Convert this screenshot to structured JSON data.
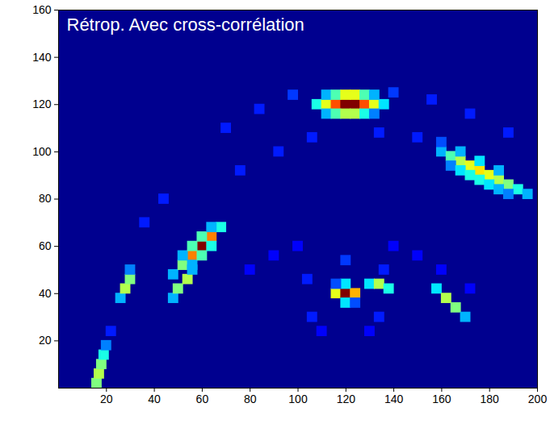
{
  "chart_data": {
    "type": "heatmap",
    "title": "Rétrop. Avec cross-corrélation",
    "xlim": [
      0,
      200
    ],
    "ylim": [
      0,
      160
    ],
    "xticks": [
      20,
      40,
      60,
      80,
      100,
      120,
      140,
      160,
      180,
      200
    ],
    "yticks": [
      20,
      40,
      60,
      80,
      100,
      120,
      140,
      160
    ],
    "clim": [
      0,
      1
    ],
    "cells": [
      [
        108,
        120,
        0.4
      ],
      [
        112,
        120,
        0.6
      ],
      [
        116,
        120,
        0.8
      ],
      [
        120,
        120,
        1.0
      ],
      [
        124,
        120,
        1.0
      ],
      [
        128,
        120,
        0.8
      ],
      [
        132,
        120,
        0.6
      ],
      [
        136,
        120,
        0.35
      ],
      [
        112,
        124,
        0.3
      ],
      [
        116,
        124,
        0.45
      ],
      [
        120,
        124,
        0.6
      ],
      [
        124,
        124,
        0.6
      ],
      [
        128,
        124,
        0.45
      ],
      [
        132,
        124,
        0.3
      ],
      [
        112,
        116,
        0.3
      ],
      [
        116,
        116,
        0.45
      ],
      [
        120,
        116,
        0.55
      ],
      [
        124,
        116,
        0.55
      ],
      [
        128,
        116,
        0.4
      ],
      [
        132,
        116,
        0.25
      ],
      [
        160,
        100,
        0.3
      ],
      [
        164,
        98,
        0.45
      ],
      [
        168,
        96,
        0.55
      ],
      [
        172,
        94,
        0.6
      ],
      [
        176,
        92,
        0.65
      ],
      [
        180,
        90,
        0.6
      ],
      [
        184,
        88,
        0.55
      ],
      [
        188,
        86,
        0.5
      ],
      [
        192,
        84,
        0.4
      ],
      [
        196,
        82,
        0.3
      ],
      [
        164,
        94,
        0.25
      ],
      [
        168,
        92,
        0.35
      ],
      [
        172,
        90,
        0.4
      ],
      [
        176,
        88,
        0.4
      ],
      [
        180,
        86,
        0.35
      ],
      [
        184,
        84,
        0.3
      ],
      [
        188,
        82,
        0.25
      ],
      [
        160,
        104,
        0.2
      ],
      [
        168,
        100,
        0.3
      ],
      [
        176,
        96,
        0.35
      ],
      [
        184,
        92,
        0.3
      ],
      [
        48,
        48,
        0.3
      ],
      [
        52,
        52,
        0.5
      ],
      [
        56,
        56,
        0.75
      ],
      [
        60,
        60,
        1.0
      ],
      [
        64,
        64,
        0.75
      ],
      [
        68,
        68,
        0.4
      ],
      [
        52,
        56,
        0.3
      ],
      [
        56,
        60,
        0.45
      ],
      [
        60,
        64,
        0.45
      ],
      [
        64,
        68,
        0.3
      ],
      [
        56,
        52,
        0.3
      ],
      [
        60,
        56,
        0.45
      ],
      [
        64,
        60,
        0.4
      ],
      [
        48,
        38,
        0.3
      ],
      [
        50,
        42,
        0.5
      ],
      [
        54,
        46,
        0.55
      ],
      [
        56,
        50,
        0.3
      ],
      [
        26,
        38,
        0.3
      ],
      [
        28,
        42,
        0.55
      ],
      [
        30,
        46,
        0.5
      ],
      [
        30,
        50,
        0.25
      ],
      [
        16,
        2,
        0.5
      ],
      [
        17,
        6,
        0.55
      ],
      [
        18,
        10,
        0.5
      ],
      [
        19,
        14,
        0.4
      ],
      [
        20,
        18,
        0.25
      ],
      [
        22,
        24,
        0.15
      ],
      [
        116,
        40,
        0.6
      ],
      [
        120,
        40,
        1.0
      ],
      [
        124,
        40,
        0.7
      ],
      [
        120,
        44,
        0.35
      ],
      [
        120,
        36,
        0.35
      ],
      [
        116,
        44,
        0.2
      ],
      [
        124,
        36,
        0.2
      ],
      [
        130,
        44,
        0.35
      ],
      [
        134,
        44,
        0.55
      ],
      [
        138,
        42,
        0.4
      ],
      [
        158,
        42,
        0.35
      ],
      [
        162,
        38,
        0.55
      ],
      [
        166,
        34,
        0.5
      ],
      [
        170,
        30,
        0.3
      ],
      [
        70,
        110,
        0.15
      ],
      [
        84,
        118,
        0.15
      ],
      [
        98,
        124,
        0.18
      ],
      [
        140,
        125,
        0.18
      ],
      [
        156,
        122,
        0.15
      ],
      [
        172,
        116,
        0.15
      ],
      [
        188,
        108,
        0.15
      ],
      [
        36,
        70,
        0.15
      ],
      [
        44,
        80,
        0.15
      ],
      [
        76,
        92,
        0.15
      ],
      [
        92,
        100,
        0.15
      ],
      [
        106,
        106,
        0.15
      ],
      [
        134,
        108,
        0.15
      ],
      [
        150,
        106,
        0.15
      ],
      [
        80,
        50,
        0.12
      ],
      [
        90,
        56,
        0.12
      ],
      [
        100,
        60,
        0.12
      ],
      [
        140,
        60,
        0.12
      ],
      [
        150,
        56,
        0.12
      ],
      [
        160,
        50,
        0.12
      ],
      [
        172,
        42,
        0.12
      ],
      [
        106,
        30,
        0.15
      ],
      [
        134,
        30,
        0.15
      ],
      [
        104,
        46,
        0.15
      ],
      [
        136,
        50,
        0.15
      ],
      [
        120,
        54,
        0.18
      ],
      [
        110,
        24,
        0.12
      ],
      [
        130,
        24,
        0.12
      ]
    ]
  }
}
